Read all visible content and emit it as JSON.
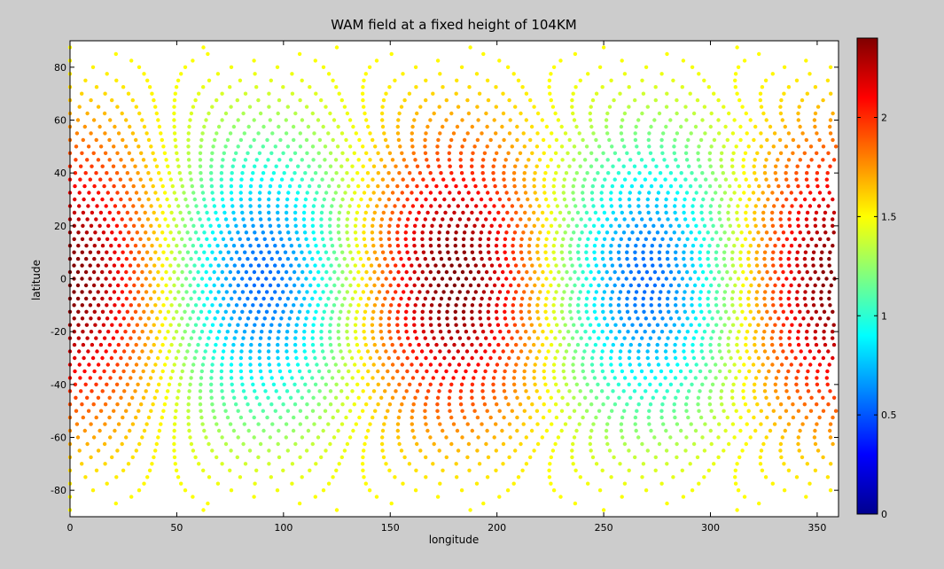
{
  "chart_data": {
    "type": "scatter",
    "title": "WAM field at a fixed height of 104KM",
    "xlabel": "longitude",
    "ylabel": "latitude",
    "xlim": [
      0,
      360
    ],
    "ylim": [
      -90,
      90
    ],
    "xticks": [
      0,
      50,
      100,
      150,
      200,
      250,
      300,
      350
    ],
    "yticks": [
      -80,
      -60,
      -40,
      -20,
      0,
      20,
      40,
      60,
      80
    ],
    "grid": false,
    "colormap": "jet",
    "marker": "filled-dot",
    "field": {
      "description_of_pattern": "wavenumber-2 in longitude, maximal at equator",
      "maxima_longitudes": [
        0,
        180,
        360
      ],
      "minima_longitudes": [
        90,
        270
      ],
      "value_at_equator_max": 2.4,
      "value_at_equator_min": 0.55,
      "value_near_poles": 1.5
    },
    "grid_spacing_deg": {
      "longitude": 3.75,
      "latitude": 2.5
    },
    "colorbar": {
      "range": [
        0,
        2.4
      ],
      "ticks": [
        0,
        0.5,
        1,
        1.5,
        2
      ],
      "tick_labels": [
        "0",
        "0.5",
        "1",
        "1.5",
        "2"
      ],
      "position": "right"
    }
  }
}
